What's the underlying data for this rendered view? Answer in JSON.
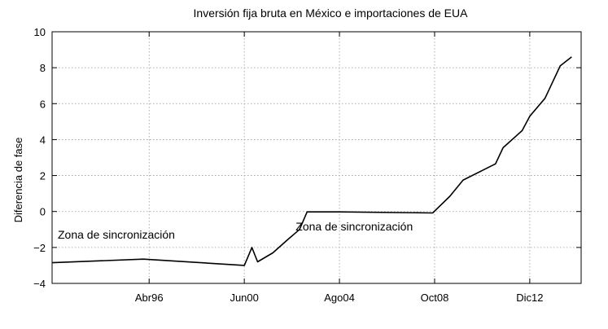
{
  "chart_data": {
    "type": "line",
    "title": "Inversión fija bruta en México e importaciones de EUA",
    "xlabel": "",
    "ylabel": "Diferencia de fase",
    "xlim": [
      "1992-01",
      "2015-03"
    ],
    "ylim": [
      -4,
      10
    ],
    "yticks": [
      -4,
      -2,
      0,
      2,
      4,
      6,
      8,
      10
    ],
    "ytick_labels": [
      "−4",
      "−2",
      "0",
      "2",
      "4",
      "6",
      "8",
      "10"
    ],
    "xticks": [
      "1996-04",
      "2000-06",
      "2004-08",
      "2008-10",
      "2012-12"
    ],
    "xtick_labels": [
      "Abr96",
      "Jun00",
      "Ago04",
      "Oct08",
      "Dic12"
    ],
    "grid": true,
    "series": [
      {
        "x": [
          "1992-01",
          "1996-01",
          "2000-06",
          "2000-10",
          "2001-01",
          "2001-09",
          "2002-05",
          "2002-11",
          "2003-03",
          "2004-08",
          "2008-09",
          "2009-06",
          "2010-01",
          "2011-06",
          "2011-10",
          "2012-08",
          "2012-12",
          "2013-08",
          "2014-04",
          "2014-10"
        ],
        "y": [
          -2.85,
          -2.65,
          -3.0,
          -2.0,
          -2.8,
          -2.3,
          -1.55,
          -1.0,
          -0.02,
          -0.02,
          -0.08,
          0.85,
          1.75,
          2.65,
          3.55,
          4.5,
          5.3,
          6.3,
          8.1,
          8.6
        ]
      }
    ],
    "annotations": [
      {
        "text": "Zona de sincronización",
        "x": "1992-04",
        "y": -1.5
      },
      {
        "text": "Zona de sincronización",
        "x": "2002-09",
        "y": -1.05
      }
    ]
  }
}
